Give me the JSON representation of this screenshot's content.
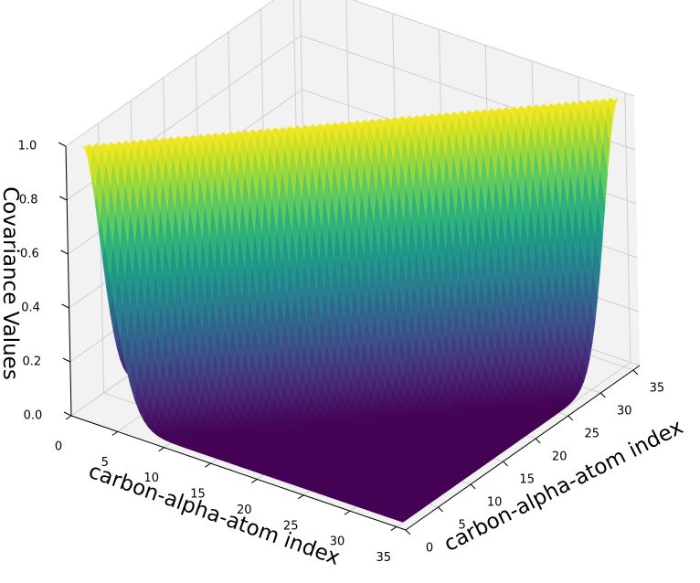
{
  "chart_data": {
    "type": "surface3d",
    "xlabel": "carbon-alpha-atom index",
    "ylabel": "carbon-alpha-atom index",
    "zlabel": "Covariance Values",
    "x_ticks": [
      "0",
      "5",
      "10",
      "15",
      "20",
      "25",
      "30",
      "35"
    ],
    "y_ticks": [
      "0",
      "5",
      "10",
      "15",
      "20",
      "25",
      "30",
      "35"
    ],
    "z_ticks": [
      "0.0",
      "0.2",
      "0.4",
      "0.6",
      "0.8",
      "1.0"
    ],
    "xlim": [
      0,
      36
    ],
    "ylim": [
      0,
      36
    ],
    "zlim": [
      0,
      1
    ],
    "grid": true,
    "colormap": "viridis",
    "surface_description": "Gaussian ridge along the diagonal i = j, peak value 1.0, near 0 elsewhere",
    "ridge_peak": 1.0,
    "ridge_width": 2.5
  }
}
